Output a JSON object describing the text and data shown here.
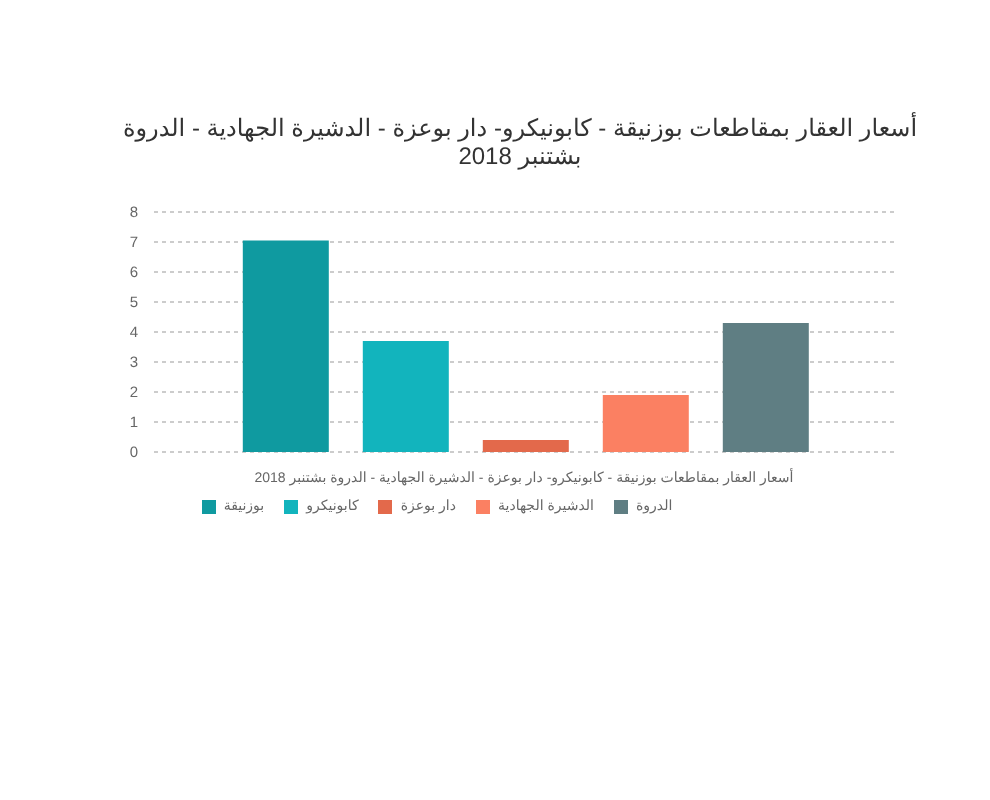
{
  "chart_data": {
    "type": "bar",
    "title": "أسعار العقار بمقاطعات بوزنيقة - كابونيكرو- دار بوعزة - الدشيرة الجهادية - الدروة بشتنبر 2018",
    "categories": [
      "أسعار العقار بمقاطعات بوزنيقة - كابونيكرو- دار بوعزة - الدشيرة الجهادية - الدروة بشتنبر 2018"
    ],
    "series": [
      {
        "name": "بوزنيقة",
        "color": "#0f9aa0",
        "values": [
          7.05
        ]
      },
      {
        "name": "كابونيكرو",
        "color": "#12b4bd",
        "values": [
          3.7
        ]
      },
      {
        "name": "دار بوعزة",
        "color": "#e3694b",
        "values": [
          0.4
        ]
      },
      {
        "name": "الدشيرة الجهادية",
        "color": "#fb8062",
        "values": [
          1.9
        ]
      },
      {
        "name": "الدروة",
        "color": "#5f7e83",
        "values": [
          4.3
        ]
      }
    ],
    "ylim": [
      0,
      8
    ],
    "yticks": [
      0,
      1,
      2,
      3,
      4,
      5,
      6,
      7,
      8
    ],
    "grid": "y",
    "legend": "bottom"
  }
}
